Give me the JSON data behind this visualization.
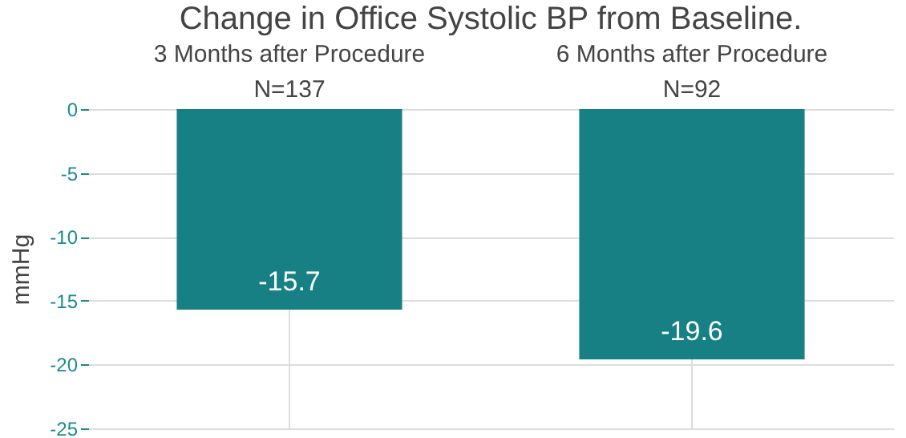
{
  "chart_data": {
    "type": "bar",
    "title": "Change in Office Systolic BP from Baseline.",
    "categories": [
      "3 Months after Procedure\nN=137",
      "6 Months after Procedure\nN=92"
    ],
    "values": [
      -15.7,
      -19.6
    ],
    "color": "#168084",
    "ylabel": "mmHg",
    "ylim": [
      -25,
      0
    ],
    "yticks": [
      -25,
      -20,
      -15,
      -10,
      -5,
      0
    ],
    "grid": true,
    "data_labels": true
  }
}
